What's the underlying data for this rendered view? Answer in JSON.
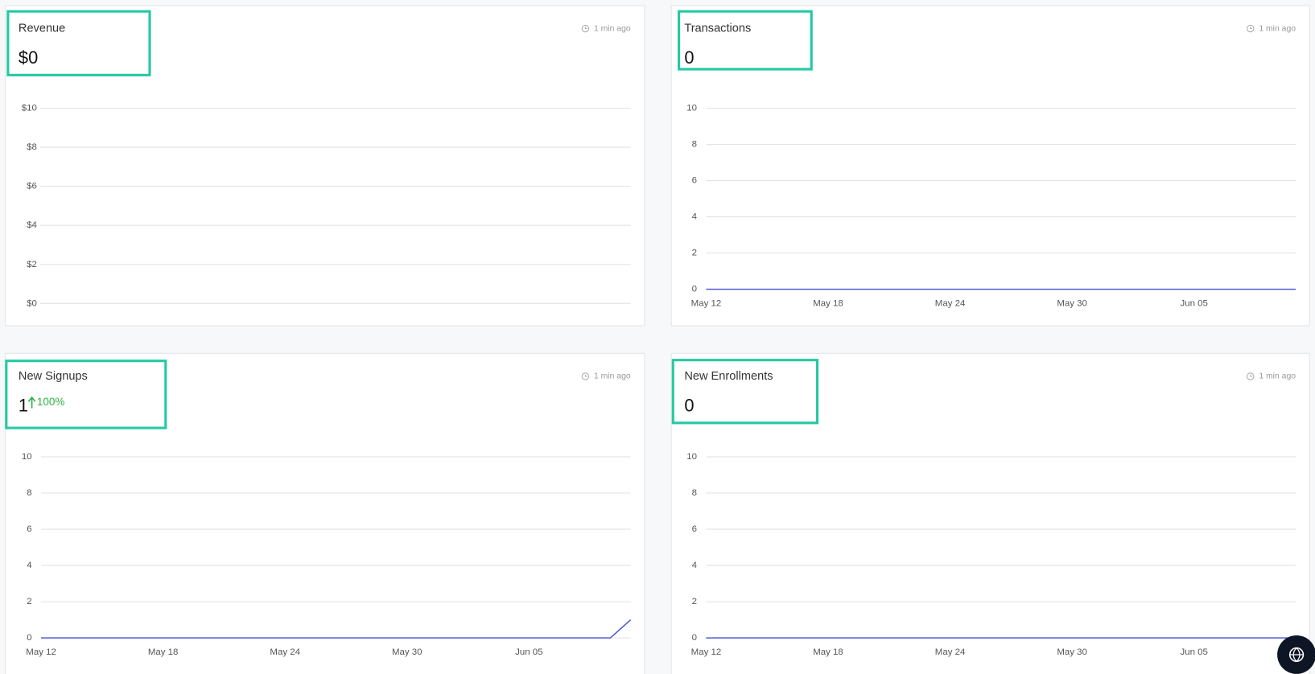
{
  "chart_data": [
    {
      "type": "line",
      "title": "Revenue",
      "headline": "$0",
      "updated": "1 min ago",
      "ylim": [
        0,
        10
      ],
      "yticks": [
        {
          "value": 0,
          "label": "$0"
        },
        {
          "value": 2,
          "label": "$2"
        },
        {
          "value": 4,
          "label": "$4"
        },
        {
          "value": 6,
          "label": "$6"
        },
        {
          "value": 8,
          "label": "$8"
        },
        {
          "value": 10,
          "label": "$10"
        }
      ],
      "grid": true
    },
    {
      "type": "line",
      "title": "Transactions",
      "headline": "0",
      "updated": "1 min ago",
      "categories": [
        "May 12",
        null,
        null,
        null,
        null,
        null,
        "May 18",
        null,
        null,
        null,
        null,
        null,
        "May 24",
        null,
        null,
        null,
        null,
        null,
        "May 30",
        null,
        null,
        null,
        null,
        null,
        "Jun 05",
        null,
        null,
        null,
        null,
        null
      ],
      "series": [
        {
          "color": "#4f5bd5",
          "values": [
            0,
            0,
            0,
            0,
            0,
            0,
            0,
            0,
            0,
            0,
            0,
            0,
            0,
            0,
            0,
            0,
            0,
            0,
            0,
            0,
            0,
            0,
            0,
            0,
            0,
            0,
            0,
            0,
            0,
            0
          ]
        }
      ],
      "ylim": [
        0,
        10
      ],
      "yticks": [
        0,
        2,
        4,
        6,
        8,
        10
      ],
      "grid": true
    },
    {
      "type": "line",
      "title": "New Signups",
      "headline": "1",
      "change": "100%",
      "updated": "1 min ago",
      "categories": [
        "May 12",
        null,
        null,
        null,
        null,
        null,
        "May 18",
        null,
        null,
        null,
        null,
        null,
        "May 24",
        null,
        null,
        null,
        null,
        null,
        "May 30",
        null,
        null,
        null,
        null,
        null,
        "Jun 05",
        null,
        null,
        null,
        null,
        null
      ],
      "series": [
        {
          "color": "#4f5bd5",
          "values": [
            0,
            0,
            0,
            0,
            0,
            0,
            0,
            0,
            0,
            0,
            0,
            0,
            0,
            0,
            0,
            0,
            0,
            0,
            0,
            0,
            0,
            0,
            0,
            0,
            0,
            0,
            0,
            0,
            0,
            1
          ]
        }
      ],
      "ylim": [
        0,
        10
      ],
      "yticks": [
        0,
        2,
        4,
        6,
        8,
        10
      ],
      "grid": true
    },
    {
      "type": "line",
      "title": "New Enrollments",
      "headline": "0",
      "updated": "1 min ago",
      "categories": [
        "May 12",
        null,
        null,
        null,
        null,
        null,
        "May 18",
        null,
        null,
        null,
        null,
        null,
        "May 24",
        null,
        null,
        null,
        null,
        null,
        "May 30",
        null,
        null,
        null,
        null,
        null,
        "Jun 05",
        null,
        null,
        null,
        null,
        null
      ],
      "series": [
        {
          "color": "#4f5bd5",
          "values": [
            0,
            0,
            0,
            0,
            0,
            0,
            0,
            0,
            0,
            0,
            0,
            0,
            0,
            0,
            0,
            0,
            0,
            0,
            0,
            0,
            0,
            0,
            0,
            0,
            0,
            0,
            0,
            0,
            0,
            0
          ]
        }
      ],
      "ylim": [
        0,
        10
      ],
      "yticks": [
        0,
        2,
        4,
        6,
        8,
        10
      ],
      "grid": true
    }
  ]
}
